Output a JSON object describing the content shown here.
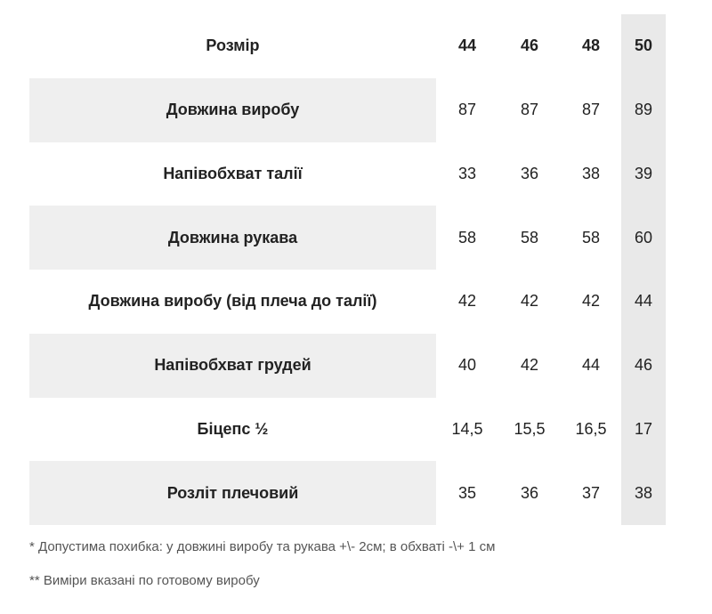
{
  "table": {
    "header": [
      "Розмір",
      "44",
      "46",
      "48",
      "50"
    ],
    "rows": [
      [
        "Довжина виробу",
        "87",
        "87",
        "87",
        "89"
      ],
      [
        "Напівобхват талії",
        "33",
        "36",
        "38",
        "39"
      ],
      [
        "Довжина рукава",
        "58",
        "58",
        "58",
        "60"
      ],
      [
        "Довжина виробу (від плеча до талії)",
        "42",
        "42",
        "42",
        "44"
      ],
      [
        "Напівобхват грудей",
        "40",
        "42",
        "44",
        "46"
      ],
      [
        "Біцепс ½",
        "14,5",
        "15,5",
        "16,5",
        "17"
      ],
      [
        "Розліт плечовий",
        "35",
        "36",
        "37",
        "38"
      ]
    ]
  },
  "notes": [
    "* Допустима похибка: у довжині виробу та рукава +\\- 2см; в обхваті -\\+ 1 см",
    "** Виміри вказані по готовому виробу"
  ]
}
